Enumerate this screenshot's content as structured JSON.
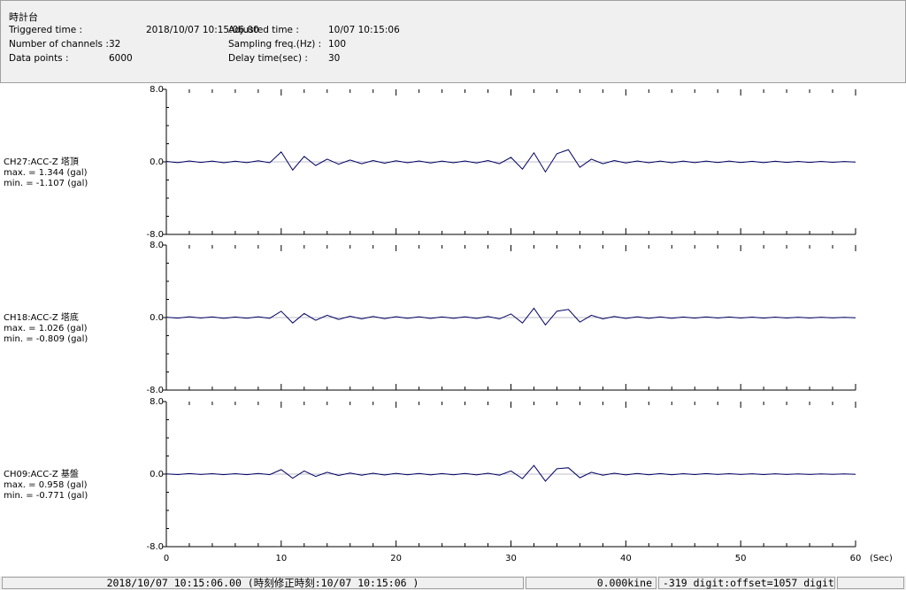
{
  "header": {
    "title": "時計台",
    "fields": [
      {
        "label": "Triggered time :",
        "value": "2018/10/07 10:15:06.00"
      },
      {
        "label": "Number of channels :",
        "value": "32"
      },
      {
        "label": "Data points :",
        "value": "6000"
      },
      {
        "label": "Adjusted time :",
        "value": "10/07 10:15:06"
      },
      {
        "label": "Sampling freq.(Hz) :",
        "value": "100"
      },
      {
        "label": "Delay time(sec) :",
        "value": "30"
      }
    ]
  },
  "chart_data": [
    {
      "type": "line",
      "channel": "CH27:ACC-Z 塔頂",
      "max": "max. = 1.344 (gal)",
      "min": "min. = -1.107 (gal)",
      "color": "#000060",
      "x": [
        0,
        1,
        2,
        3,
        4,
        5,
        6,
        7,
        8,
        9,
        10,
        11,
        12,
        13,
        14,
        15,
        16,
        17,
        18,
        19,
        20,
        21,
        22,
        23,
        24,
        25,
        26,
        27,
        28,
        29,
        30,
        31,
        32,
        33,
        34,
        35,
        36,
        37,
        38,
        39,
        40,
        41,
        42,
        43,
        44,
        45,
        46,
        47,
        48,
        49,
        50,
        51,
        52,
        53,
        54,
        55,
        56,
        57,
        58,
        59,
        60
      ],
      "values": [
        0.05,
        -0.08,
        0.1,
        -0.06,
        0.09,
        -0.1,
        0.07,
        -0.09,
        0.12,
        -0.1,
        1.1,
        -0.9,
        0.6,
        -0.4,
        0.3,
        -0.25,
        0.2,
        -0.2,
        0.15,
        -0.15,
        0.12,
        -0.1,
        0.1,
        -0.12,
        0.09,
        -0.1,
        0.1,
        -0.12,
        0.15,
        -0.2,
        0.5,
        -0.8,
        1.0,
        -1.107,
        0.9,
        1.344,
        -0.6,
        0.3,
        -0.2,
        0.15,
        -0.12,
        0.1,
        -0.1,
        0.09,
        -0.1,
        0.08,
        -0.08,
        0.09,
        -0.07,
        0.08,
        -0.07,
        0.06,
        -0.08,
        0.07,
        -0.06,
        0.05,
        -0.06,
        0.05,
        -0.05,
        0.04,
        -0.03
      ],
      "xlim": [
        0,
        60
      ],
      "xticks": [
        0,
        10,
        20,
        30,
        40,
        50,
        60
      ],
      "xminorticks": [
        2,
        4,
        6,
        8,
        12,
        14,
        16,
        18,
        22,
        24,
        26,
        28,
        32,
        34,
        36,
        38,
        42,
        44,
        46,
        48,
        52,
        54,
        56,
        58
      ],
      "ylim": [
        -8,
        8
      ],
      "yticks": [
        {
          "value": 8,
          "label": "8.0"
        },
        {
          "value": 0,
          "label": "0.0"
        },
        {
          "value": -8,
          "label": "-8.0"
        }
      ],
      "yminorticks": [
        -6,
        -4,
        -2,
        2,
        4,
        6
      ]
    },
    {
      "type": "line",
      "channel": "CH18:ACC-Z 塔底",
      "max": "max. = 1.026 (gal)",
      "min": "min. = -0.809 (gal)",
      "color": "#000060",
      "x": [
        0,
        1,
        2,
        3,
        4,
        5,
        6,
        7,
        8,
        9,
        10,
        11,
        12,
        13,
        14,
        15,
        16,
        17,
        18,
        19,
        20,
        21,
        22,
        23,
        24,
        25,
        26,
        27,
        28,
        29,
        30,
        31,
        32,
        33,
        34,
        35,
        36,
        37,
        38,
        39,
        40,
        41,
        42,
        43,
        44,
        45,
        46,
        47,
        48,
        49,
        50,
        51,
        52,
        53,
        54,
        55,
        56,
        57,
        58,
        59,
        60
      ],
      "values": [
        0.04,
        -0.06,
        0.08,
        -0.05,
        0.07,
        -0.08,
        0.06,
        -0.07,
        0.09,
        -0.08,
        0.7,
        -0.6,
        0.45,
        -0.3,
        0.25,
        -0.2,
        0.15,
        -0.15,
        0.12,
        -0.12,
        0.1,
        -0.08,
        0.08,
        -0.1,
        0.07,
        -0.08,
        0.08,
        -0.1,
        0.12,
        -0.15,
        0.4,
        -0.6,
        1.026,
        -0.809,
        0.7,
        0.9,
        -0.5,
        0.25,
        -0.15,
        0.12,
        -0.1,
        0.08,
        -0.08,
        0.07,
        -0.08,
        0.06,
        -0.06,
        0.07,
        -0.05,
        0.06,
        -0.05,
        0.05,
        -0.06,
        0.05,
        -0.05,
        0.04,
        -0.05,
        0.04,
        -0.04,
        0.03,
        -0.02
      ],
      "xlim": [
        0,
        60
      ],
      "xticks": [
        0,
        10,
        20,
        30,
        40,
        50,
        60
      ],
      "xminorticks": [
        2,
        4,
        6,
        8,
        12,
        14,
        16,
        18,
        22,
        24,
        26,
        28,
        32,
        34,
        36,
        38,
        42,
        44,
        46,
        48,
        52,
        54,
        56,
        58
      ],
      "ylim": [
        -8,
        8
      ],
      "yticks": [
        {
          "value": 8,
          "label": "8.0"
        },
        {
          "value": 0,
          "label": "0.0"
        },
        {
          "value": -8,
          "label": "-8.0"
        }
      ],
      "yminorticks": [
        -6,
        -4,
        -2,
        2,
        4,
        6
      ]
    },
    {
      "type": "line",
      "channel": "CH09:ACC-Z 基盤",
      "max": "max. = 0.958 (gal)",
      "min": "min. = -0.771 (gal)",
      "color": "#000060",
      "x": [
        0,
        1,
        2,
        3,
        4,
        5,
        6,
        7,
        8,
        9,
        10,
        11,
        12,
        13,
        14,
        15,
        16,
        17,
        18,
        19,
        20,
        21,
        22,
        23,
        24,
        25,
        26,
        27,
        28,
        29,
        30,
        31,
        32,
        33,
        34,
        35,
        36,
        37,
        38,
        39,
        40,
        41,
        42,
        43,
        44,
        45,
        46,
        47,
        48,
        49,
        50,
        51,
        52,
        53,
        54,
        55,
        56,
        57,
        58,
        59,
        60
      ],
      "values": [
        0.03,
        -0.05,
        0.06,
        -0.04,
        0.05,
        -0.06,
        0.05,
        -0.06,
        0.07,
        -0.06,
        0.5,
        -0.45,
        0.35,
        -0.25,
        0.2,
        -0.15,
        0.12,
        -0.12,
        0.1,
        -0.1,
        0.08,
        -0.07,
        0.07,
        -0.08,
        0.06,
        -0.07,
        0.07,
        -0.08,
        0.1,
        -0.12,
        0.35,
        -0.5,
        0.958,
        -0.771,
        0.6,
        0.7,
        -0.4,
        0.2,
        -0.12,
        0.1,
        -0.08,
        0.07,
        -0.07,
        0.06,
        -0.07,
        0.05,
        -0.05,
        0.06,
        -0.04,
        0.05,
        -0.04,
        0.04,
        -0.05,
        0.04,
        -0.04,
        0.03,
        -0.04,
        0.03,
        -0.03,
        0.02,
        -0.02
      ],
      "xlim": [
        0,
        60
      ],
      "xticks": [
        0,
        10,
        20,
        30,
        40,
        50,
        60
      ],
      "xminorticks": [
        2,
        4,
        6,
        8,
        12,
        14,
        16,
        18,
        22,
        24,
        26,
        28,
        32,
        34,
        36,
        38,
        42,
        44,
        46,
        48,
        52,
        54,
        56,
        58
      ],
      "ylim": [
        -8,
        8
      ],
      "yticks": [
        {
          "value": 8,
          "label": "8.0"
        },
        {
          "value": 0,
          "label": "0.0"
        },
        {
          "value": -8,
          "label": "-8.0"
        }
      ],
      "yminorticks": [
        -6,
        -4,
        -2,
        2,
        4,
        6
      ]
    }
  ],
  "x_unit": "(Sec)",
  "status": {
    "time": "2018/10/07 10:15:06.00  (時刻修正時刻:10/07 10:15:06  )",
    "velocity": "0.000kine",
    "digit": "-319 digit:offset=1057 digit"
  }
}
